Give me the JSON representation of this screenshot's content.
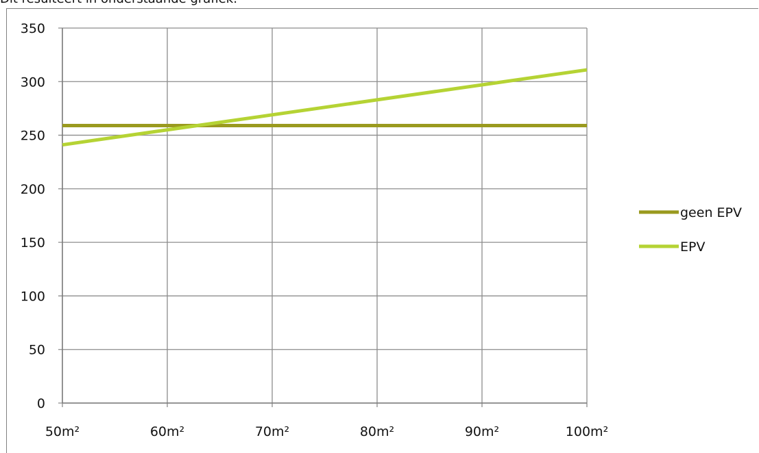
{
  "caption": "Dit resulteert in onderstaande grafiek:",
  "chart_data": {
    "type": "line",
    "x": [
      50,
      60,
      70,
      80,
      90,
      100
    ],
    "x_tick_labels": [
      "50m²",
      "60m²",
      "70m²",
      "80m²",
      "90m²",
      "100m²"
    ],
    "y_ticks": [
      0,
      50,
      100,
      150,
      200,
      250,
      300,
      350
    ],
    "ylim": [
      0,
      350
    ],
    "xlim": [
      50,
      100
    ],
    "grid": true,
    "legend_position": "right",
    "series": [
      {
        "name": "geen EPV",
        "color": "#9a9a1f",
        "values": [
          259,
          259,
          259,
          259,
          259,
          259
        ]
      },
      {
        "name": "EPV",
        "color": "#b5d334",
        "values": [
          241,
          255,
          269,
          283,
          297,
          311
        ]
      }
    ]
  }
}
